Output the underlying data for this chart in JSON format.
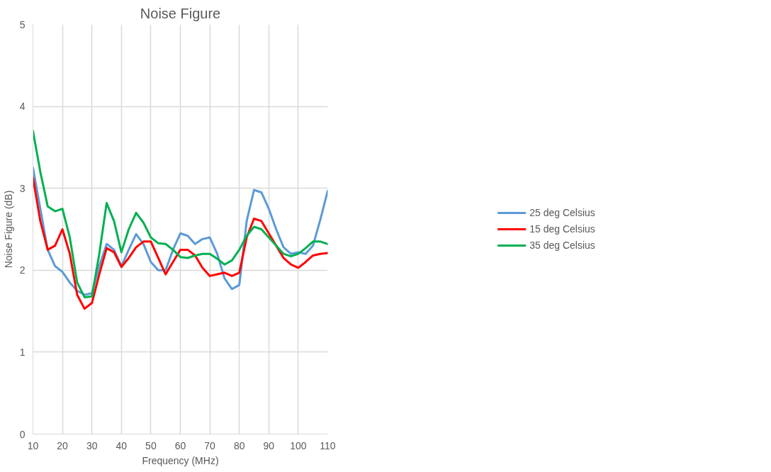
{
  "chart_data": {
    "type": "line",
    "title": "Noise Figure",
    "xlabel": "Frequency (MHz)",
    "ylabel": "Noise Figure (dB)",
    "x": [
      10,
      12.5,
      15,
      17.5,
      20,
      22.5,
      25,
      27.5,
      30,
      32.5,
      35,
      37.5,
      40,
      42.5,
      45,
      47.5,
      50,
      52.5,
      55,
      57.5,
      60,
      62.5,
      65,
      67.5,
      70,
      72.5,
      75,
      77.5,
      80,
      82.5,
      85,
      87.5,
      90,
      92.5,
      95,
      97.5,
      100,
      102.5,
      105,
      107.5,
      110
    ],
    "series": [
      {
        "name": "25 deg Celsius",
        "color": "#5b9bd5",
        "values": [
          3.25,
          2.75,
          2.25,
          2.05,
          1.98,
          1.85,
          1.75,
          1.7,
          1.72,
          2.05,
          2.32,
          2.25,
          2.05,
          2.25,
          2.44,
          2.32,
          2.1,
          2.0,
          2.0,
          2.25,
          2.45,
          2.42,
          2.32,
          2.38,
          2.4,
          2.2,
          1.9,
          1.77,
          1.82,
          2.6,
          2.98,
          2.95,
          2.75,
          2.5,
          2.28,
          2.2,
          2.22,
          2.2,
          2.3,
          2.62,
          2.97
        ]
      },
      {
        "name": "15 deg Celsius",
        "color": "#ff0000",
        "values": [
          3.13,
          2.6,
          2.25,
          2.3,
          2.5,
          2.2,
          1.7,
          1.53,
          1.6,
          1.95,
          2.27,
          2.22,
          2.04,
          2.15,
          2.28,
          2.35,
          2.35,
          2.15,
          1.95,
          2.1,
          2.25,
          2.25,
          2.18,
          2.03,
          1.93,
          1.95,
          1.97,
          1.93,
          1.97,
          2.4,
          2.63,
          2.6,
          2.45,
          2.3,
          2.15,
          2.07,
          2.03,
          2.1,
          2.18,
          2.2,
          2.21
        ]
      },
      {
        "name": "35 deg Celsius",
        "color": "#00b050",
        "values": [
          3.7,
          3.2,
          2.78,
          2.72,
          2.75,
          2.4,
          1.85,
          1.67,
          1.68,
          2.2,
          2.82,
          2.6,
          2.22,
          2.5,
          2.7,
          2.58,
          2.4,
          2.33,
          2.32,
          2.25,
          2.16,
          2.15,
          2.18,
          2.2,
          2.2,
          2.14,
          2.07,
          2.12,
          2.25,
          2.42,
          2.53,
          2.5,
          2.4,
          2.3,
          2.2,
          2.17,
          2.2,
          2.27,
          2.35,
          2.35,
          2.32
        ]
      }
    ],
    "xlim": [
      10,
      110
    ],
    "xticks": [
      10,
      20,
      30,
      40,
      50,
      60,
      70,
      80,
      90,
      100,
      110
    ],
    "ylim": [
      0,
      5
    ],
    "yticks": [
      0,
      1,
      2,
      3,
      4,
      5
    ],
    "grid": true,
    "legend": "right",
    "marker": "none",
    "line_style": "solid"
  }
}
